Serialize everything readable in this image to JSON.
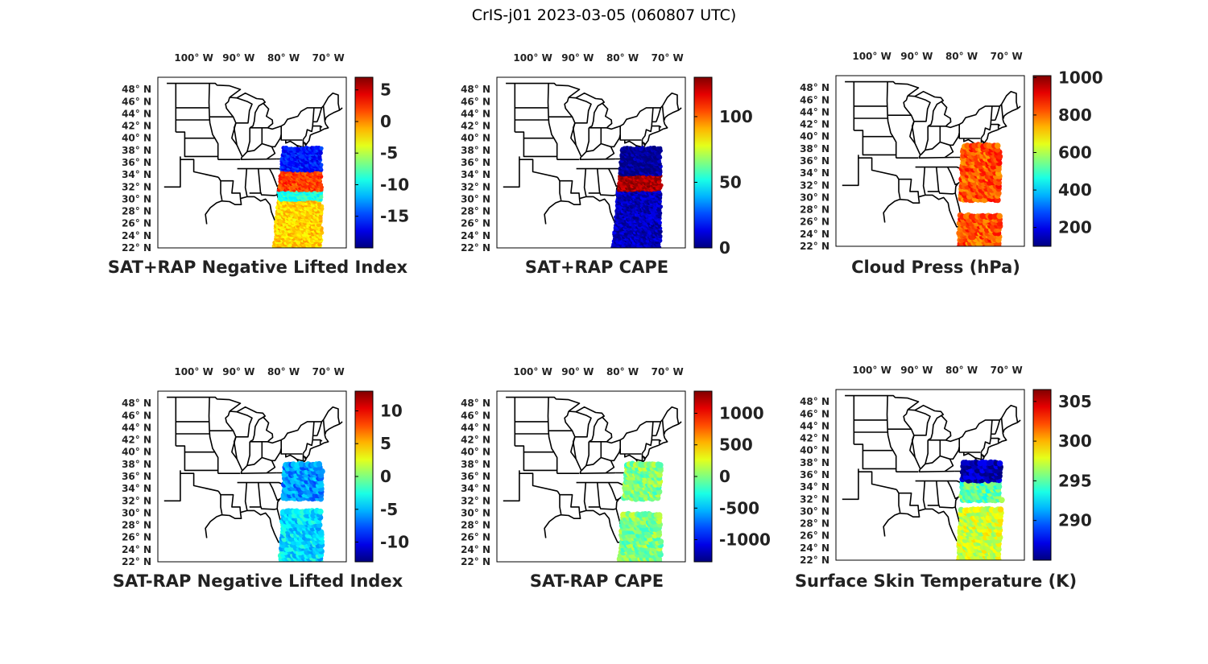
{
  "figure_title": "CrIS-j01 2023-03-05 (060807 UTC)",
  "map": {
    "lon_labels": [
      "100° W",
      "90° W",
      "80° W",
      "70° W"
    ],
    "lon_values": [
      -100,
      -90,
      -80,
      -70
    ],
    "lat_labels": [
      "48° N",
      "46° N",
      "44° N",
      "42° N",
      "40° N",
      "38° N",
      "36° N",
      "34° N",
      "32° N",
      "30° N",
      "28° N",
      "26° N",
      "24° N",
      "22° N"
    ],
    "lat_values": [
      48,
      46,
      44,
      42,
      40,
      38,
      36,
      34,
      32,
      30,
      28,
      26,
      24,
      22
    ],
    "lon_range": [
      -108,
      -66
    ],
    "lat_range": [
      22,
      50
    ],
    "land_color": "#ffffff",
    "border_color": "#000000"
  },
  "colormap": "jet",
  "panels": [
    {
      "id": "p1",
      "title": "SAT+RAP Negative Lifted Index",
      "colorbar": {
        "min": -20,
        "max": 7,
        "ticks": [
          5,
          0,
          -5,
          -10,
          -15
        ],
        "tick_labels": [
          "5",
          "0",
          "-5",
          "-10",
          "-15"
        ]
      },
      "swath": {
        "type": "dense",
        "lon_min": -80,
        "lon_max": -71.5,
        "lat_min": 22,
        "lat_max": 38.5,
        "lon_min_south": -82,
        "lon_max_south": -71.5
      },
      "value_bands": [
        {
          "lat_min": 34.5,
          "lat_max": 38.5,
          "value": -16
        },
        {
          "lat_min": 31.5,
          "lat_max": 34.5,
          "value": 2
        },
        {
          "lat_min": 30.0,
          "lat_max": 31.5,
          "value": -9
        },
        {
          "lat_min": 22.0,
          "lat_max": 30.0,
          "value": -2
        }
      ]
    },
    {
      "id": "p2",
      "title": "SAT+RAP CAPE",
      "colorbar": {
        "min": 0,
        "max": 130,
        "ticks": [
          100,
          50,
          0
        ],
        "tick_labels": [
          "100",
          "50",
          "0"
        ]
      },
      "swath": {
        "type": "dense",
        "lon_min": -80,
        "lon_max": -71.5,
        "lat_min": 22,
        "lat_max": 38.5,
        "lon_min_south": -82,
        "lon_max_south": -71.5
      },
      "value_bands": [
        {
          "lat_min": 34.0,
          "lat_max": 38.5,
          "value": 3
        },
        {
          "lat_min": 31.5,
          "lat_max": 34.0,
          "value": 125
        },
        {
          "lat_min": 22.0,
          "lat_max": 31.5,
          "value": 8
        }
      ]
    },
    {
      "id": "p3",
      "title": "Cloud Press (hPa)",
      "colorbar": {
        "min": 100,
        "max": 1010,
        "ticks": [
          1000,
          800,
          600,
          400,
          200
        ],
        "tick_labels": [
          "1000",
          "800",
          "600",
          "400",
          "200"
        ]
      },
      "swath": {
        "type": "patchy",
        "lon_min": -79.5,
        "lon_max": -71.5,
        "lat_min": 22,
        "lat_max": 38.5,
        "lon_min_south": -80.5,
        "lon_max_south": -71.5,
        "gaps": [
          [
            29.2,
            27.3
          ]
        ]
      },
      "value_bands": [
        {
          "lat_min": 22.0,
          "lat_max": 38.5,
          "value": 820
        }
      ]
    },
    {
      "id": "p4",
      "title": "SAT-RAP Negative Lifted Index",
      "colorbar": {
        "min": -13,
        "max": 13,
        "ticks": [
          10,
          5,
          0,
          -5,
          -10
        ],
        "tick_labels": [
          "10",
          "5",
          "0",
          "-5",
          "-10"
        ]
      },
      "swath": {
        "type": "patchy",
        "lon_min": -79.5,
        "lon_max": -71.5,
        "lat_min": 22,
        "lat_max": 38,
        "lon_min_south": -80.5,
        "lon_max_south": -71.5,
        "gaps": [
          [
            32.3,
            30.7
          ]
        ]
      },
      "value_bands": [
        {
          "lat_min": 32.3,
          "lat_max": 38.0,
          "value": -6
        },
        {
          "lat_min": 22.0,
          "lat_max": 30.7,
          "value": -4
        }
      ]
    },
    {
      "id": "p5",
      "title": "SAT-RAP CAPE",
      "colorbar": {
        "min": -1350,
        "max": 1350,
        "ticks": [
          1000,
          500,
          0,
          -500,
          -1000
        ],
        "tick_labels": [
          "1000",
          "500",
          "0",
          "-500",
          "-1000"
        ]
      },
      "swath": {
        "type": "patchy",
        "lon_min": -79,
        "lon_max": -71.5,
        "lat_min": 22,
        "lat_max": 38,
        "lon_min_south": -80.5,
        "lon_max_south": -71.5,
        "gaps": [
          [
            32.3,
            30.2
          ]
        ]
      },
      "value_bands": [
        {
          "lat_min": 22.0,
          "lat_max": 38.0,
          "value": 0
        }
      ]
    },
    {
      "id": "p6",
      "title": "Surface Skin Temperature (K)",
      "colorbar": {
        "min": 285,
        "max": 306.5,
        "ticks": [
          305,
          300,
          295,
          290
        ],
        "tick_labels": [
          "305",
          "300",
          "295",
          "290"
        ]
      },
      "swath": {
        "type": "patchy",
        "lon_min": -79.5,
        "lon_max": -71,
        "lat_min": 22,
        "lat_max": 38,
        "lon_min_south": -80.5,
        "lon_max_south": -71.5,
        "gaps": [
          [
            31.6,
            30.8
          ]
        ]
      },
      "value_bands": [
        {
          "lat_min": 35.0,
          "lat_max": 38.0,
          "value": 286
        },
        {
          "lat_min": 31.6,
          "lat_max": 35.0,
          "value": 295
        },
        {
          "lat_min": 22.0,
          "lat_max": 30.8,
          "value": 297.5
        }
      ]
    }
  ]
}
